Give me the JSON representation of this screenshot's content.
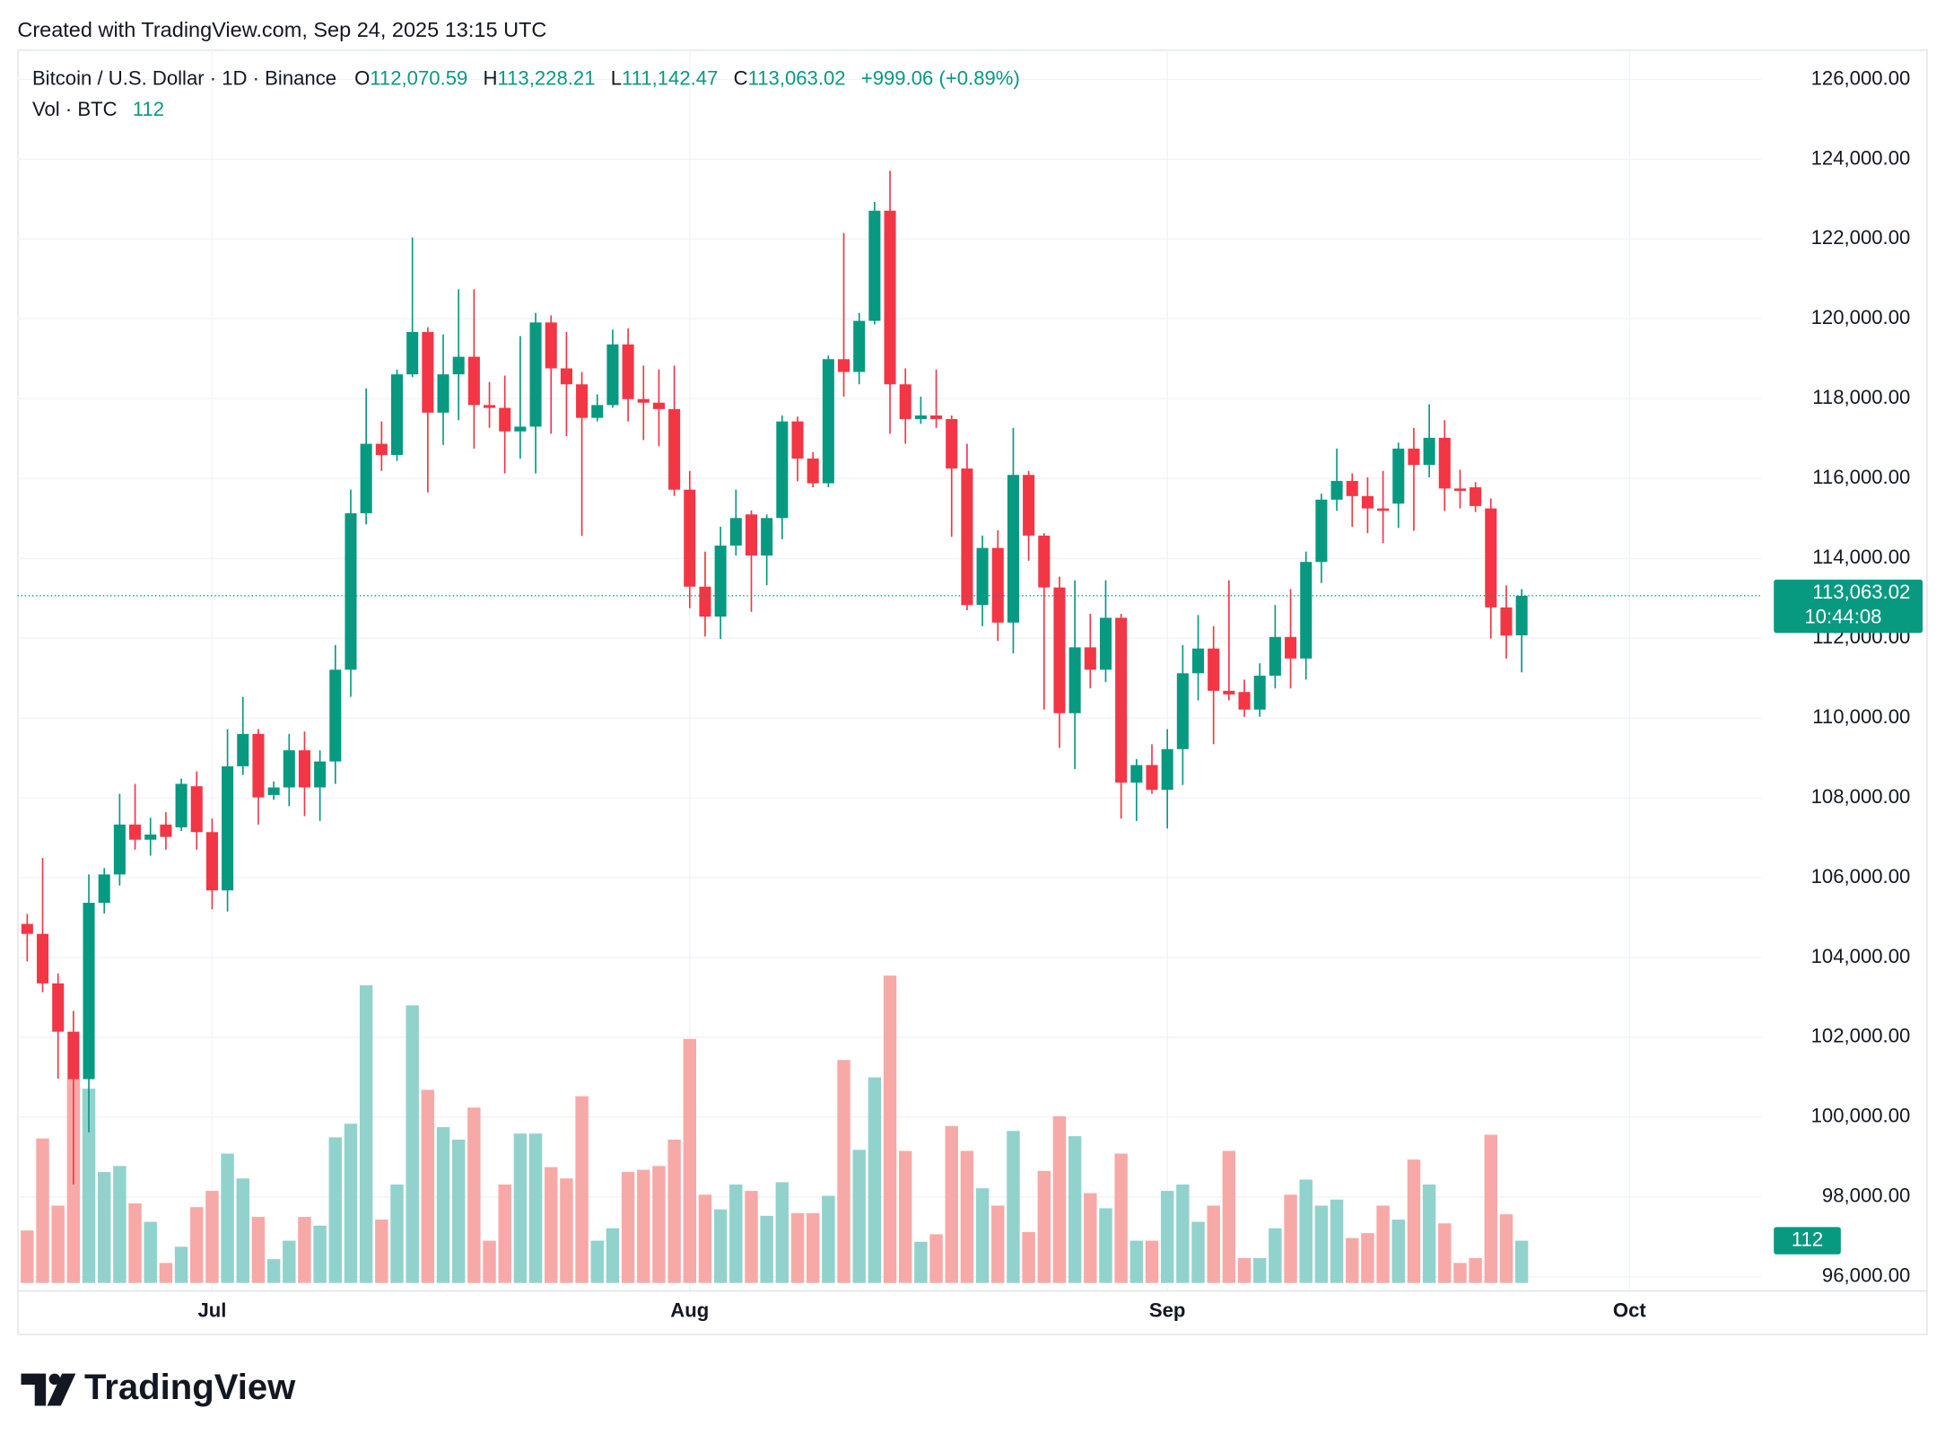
{
  "header": {
    "created": "Created with TradingView.com, Sep 24, 2025 13:15 UTC",
    "logo": "TradingView"
  },
  "chart_data": {
    "type": "candlestick",
    "legend": {
      "symbol": "Bitcoin / U.S. Dollar · 1D · Binance",
      "ohlc": [
        {
          "key": "O",
          "value": "112,070.59"
        },
        {
          "key": "H",
          "value": "113,228.21"
        },
        {
          "key": "L",
          "value": "111,142.47"
        },
        {
          "key": "C",
          "value": "113,063.02"
        }
      ],
      "change": "+999.06 (+0.89%)",
      "volume_title": "Vol · BTC"
    },
    "countdown": "10:44:08",
    "up_color": "#089981",
    "down_color": "#f23645",
    "volume_up_color": "#92d2cc",
    "volume_down_color": "#f7a9a7",
    "grid": true,
    "xlim": [
      -0.64,
      112.56
    ],
    "xticks": [
      {
        "value": 12,
        "label": "Jul"
      },
      {
        "value": 43,
        "label": "Aug"
      },
      {
        "value": 74,
        "label": "Sep"
      },
      {
        "value": 104,
        "label": "Oct"
      }
    ],
    "ylim": [
      95658,
      126746
    ],
    "yticks": [
      {
        "value": 96000,
        "label": "96,000.00"
      },
      {
        "value": 98000,
        "label": "98,000.00"
      },
      {
        "value": 100000,
        "label": "100,000.00"
      },
      {
        "value": 102000,
        "label": "102,000.00"
      },
      {
        "value": 104000,
        "label": "104,000.00"
      },
      {
        "value": 106000,
        "label": "106,000.00"
      },
      {
        "value": 108000,
        "label": "108,000.00"
      },
      {
        "value": 110000,
        "label": "110,000.00"
      },
      {
        "value": 112000,
        "label": "112,000.00"
      },
      {
        "value": 114000,
        "label": "114,000.00"
      },
      {
        "value": 116000,
        "label": "116,000.00"
      },
      {
        "value": 118000,
        "label": "118,000.00"
      },
      {
        "value": 120000,
        "label": "120,000.00"
      },
      {
        "value": 122000,
        "label": "122,000.00"
      },
      {
        "value": 124000,
        "label": "124,000.00"
      },
      {
        "value": 126000,
        "label": "126,000.00"
      }
    ],
    "volume_lim": [
      0,
      1000
    ],
    "open": [
      104840,
      104590,
      103350,
      102140,
      100950,
      105370,
      106080,
      107330,
      106950,
      107330,
      107260,
      108290,
      107140,
      105680,
      108790,
      109600,
      108070,
      108260,
      109190,
      108260,
      108910,
      111210,
      115130,
      116870,
      116590,
      118610,
      119670,
      117650,
      118610,
      119050,
      117840,
      117770,
      117180,
      117300,
      119910,
      118760,
      118360,
      117520,
      117840,
      119360,
      117990,
      117900,
      117740,
      115720,
      113290,
      112540,
      114320,
      115100,
      114070,
      115010,
      117430,
      116500,
      115880,
      118990,
      118670,
      119950,
      122710,
      118360,
      117490,
      117580,
      117490,
      116250,
      112830,
      114260,
      112390,
      116090,
      114570,
      113270,
      110120,
      111770,
      111210,
      112510,
      108380,
      108820,
      108200,
      109220,
      111120,
      111740,
      110680,
      110650,
      110210,
      111060,
      112030,
      111490,
      113910,
      115470,
      115940,
      115560,
      115250,
      115370,
      116750,
      116340,
      117020,
      115750,
      115780,
      115250,
      112770,
      112070.59
    ],
    "high": [
      105090,
      106490,
      103600,
      102660,
      106080,
      106240,
      108100,
      108350,
      107500,
      107640,
      108480,
      108660,
      107480,
      109720,
      110530,
      109720,
      108410,
      109600,
      109660,
      109190,
      111830,
      115720,
      118260,
      117430,
      118730,
      122040,
      119790,
      119610,
      120740,
      120740,
      118420,
      118580,
      119570,
      120150,
      120090,
      119670,
      118670,
      118110,
      119730,
      119760,
      118830,
      118730,
      118830,
      116190,
      114170,
      114790,
      115720,
      115200,
      115100,
      117580,
      117550,
      116660,
      119080,
      122150,
      120150,
      122930,
      123710,
      118760,
      118050,
      118730,
      117580,
      116870,
      114570,
      114700,
      117270,
      116190,
      114630,
      113540,
      113450,
      112610,
      113450,
      112610,
      108970,
      109340,
      109720,
      111830,
      112580,
      112300,
      113450,
      110960,
      111370,
      112830,
      113230,
      114170,
      115620,
      116750,
      116130,
      116030,
      116190,
      116900,
      117270,
      117860,
      117460,
      116220,
      115910,
      115500,
      113320,
      113228.21
    ],
    "low": [
      103900,
      103130,
      100960,
      98310,
      99620,
      105100,
      105800,
      106700,
      106550,
      106700,
      107170,
      106700,
      105210,
      105150,
      108570,
      107330,
      107950,
      107790,
      107540,
      107420,
      108350,
      110530,
      114850,
      116190,
      116440,
      118540,
      115650,
      116840,
      117460,
      116750,
      117270,
      116130,
      116500,
      116130,
      117120,
      117060,
      114560,
      117430,
      117770,
      117430,
      116960,
      116810,
      115560,
      112750,
      112040,
      111980,
      114070,
      112660,
      113330,
      114480,
      115930,
      115780,
      115780,
      118050,
      118360,
      119860,
      117120,
      116870,
      117370,
      117270,
      114540,
      112700,
      112300,
      111930,
      111620,
      113940,
      110210,
      109250,
      108720,
      110740,
      110900,
      107480,
      107420,
      108100,
      107230,
      108320,
      110440,
      109340,
      110440,
      110030,
      110030,
      110740,
      110740,
      110960,
      113380,
      115190,
      114790,
      114630,
      114380,
      114760,
      114690,
      116030,
      115190,
      115250,
      115160,
      111990,
      111490,
      111142.47
    ],
    "close": [
      104590,
      103350,
      102140,
      100950,
      105370,
      106080,
      107330,
      106950,
      107080,
      107020,
      108350,
      107140,
      105680,
      108790,
      109600,
      108010,
      108260,
      109190,
      108260,
      108910,
      111210,
      115130,
      116870,
      116590,
      118610,
      119670,
      117650,
      118610,
      119050,
      117840,
      117770,
      117180,
      117300,
      119910,
      118760,
      118360,
      117520,
      117840,
      119360,
      117990,
      117900,
      117740,
      115720,
      113290,
      112540,
      114320,
      115010,
      114070,
      115010,
      117430,
      116500,
      115880,
      118990,
      118670,
      119950,
      122710,
      118360,
      117490,
      117580,
      117490,
      116250,
      112830,
      114260,
      112390,
      116090,
      114570,
      113270,
      110120,
      111770,
      111210,
      112510,
      108380,
      108820,
      108200,
      109220,
      111120,
      111740,
      110680,
      110590,
      110210,
      111060,
      112030,
      111490,
      113910,
      115470,
      115940,
      115560,
      115250,
      115190,
      116750,
      116340,
      117020,
      115750,
      115690,
      115310,
      112770,
      112064,
      113063.02
    ],
    "volume": [
      139,
      383,
      205,
      541,
      515,
      294,
      310,
      211,
      162,
      53,
      96,
      201,
      244,
      343,
      277,
      175,
      63,
      112,
      175,
      152,
      386,
      422,
      789,
      168,
      261,
      736,
      512,
      413,
      380,
      465,
      112,
      261,
      396,
      396,
      307,
      277,
      495,
      112,
      145,
      294,
      300,
      310,
      380,
      647,
      234,
      195,
      261,
      244,
      178,
      267,
      185,
      185,
      231,
      591,
      353,
      545,
      815,
      350,
      109,
      129,
      416,
      350,
      251,
      205,
      403,
      135,
      297,
      442,
      389,
      238,
      198,
      343,
      112,
      112,
      244,
      261,
      162,
      205,
      350,
      66,
      66,
      145,
      234,
      274,
      205,
      221,
      119,
      132,
      205,
      168,
      327,
      261,
      158,
      53,
      66,
      393,
      182,
      112
    ]
  }
}
